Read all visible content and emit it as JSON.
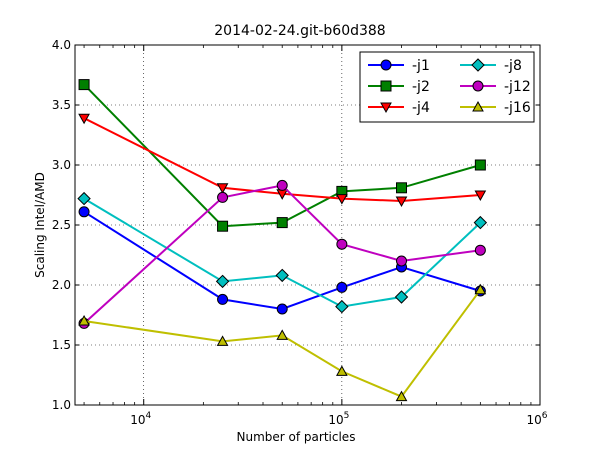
{
  "chart_data": {
    "type": "line",
    "title": "2014-02-24.git-b60d388",
    "xlabel": "Number of particles",
    "ylabel": "Scaling Intel/AMD",
    "xscale": "log",
    "xlim": [
      4500,
      1000000
    ],
    "ylim": [
      1.0,
      4.0
    ],
    "grid": true,
    "legend_position": "top-right",
    "legend_columns": 2,
    "x_ticks": [
      {
        "value": 10000,
        "base": "10",
        "exp": "4"
      },
      {
        "value": 100000,
        "base": "10",
        "exp": "5"
      },
      {
        "value": 1000000,
        "base": "10",
        "exp": "6"
      }
    ],
    "y_ticks": [
      {
        "value": 1.0,
        "label": "1.0"
      },
      {
        "value": 1.5,
        "label": "1.5"
      },
      {
        "value": 2.0,
        "label": "2.0"
      },
      {
        "value": 2.5,
        "label": "2.5"
      },
      {
        "value": 3.0,
        "label": "3.0"
      },
      {
        "value": 3.5,
        "label": "3.5"
      },
      {
        "value": 4.0,
        "label": "4.0"
      }
    ],
    "x": [
      5000,
      25000,
      50000,
      100000,
      200000,
      500000
    ],
    "series": [
      {
        "name": "-j1",
        "color": "#0000ff",
        "marker": "circle",
        "values": [
          2.61,
          1.88,
          1.8,
          1.98,
          2.15,
          1.95
        ]
      },
      {
        "name": "-j2",
        "color": "#008000",
        "marker": "square",
        "values": [
          3.67,
          2.49,
          2.52,
          2.78,
          2.81,
          3.0
        ]
      },
      {
        "name": "-j4",
        "color": "#ff0000",
        "marker": "triangle-down",
        "values": [
          3.39,
          2.81,
          2.76,
          2.72,
          2.7,
          2.75
        ]
      },
      {
        "name": "-j8",
        "color": "#00bfbf",
        "marker": "diamond",
        "values": [
          2.72,
          2.03,
          2.08,
          1.82,
          1.9,
          2.52
        ]
      },
      {
        "name": "-j12",
        "color": "#bf00bf",
        "marker": "circle",
        "values": [
          1.68,
          2.73,
          2.83,
          2.34,
          2.2,
          2.29
        ]
      },
      {
        "name": "-j16",
        "color": "#bfbf00",
        "marker": "triangle-up",
        "values": [
          1.7,
          1.53,
          1.58,
          1.28,
          1.07,
          1.96
        ]
      }
    ]
  }
}
